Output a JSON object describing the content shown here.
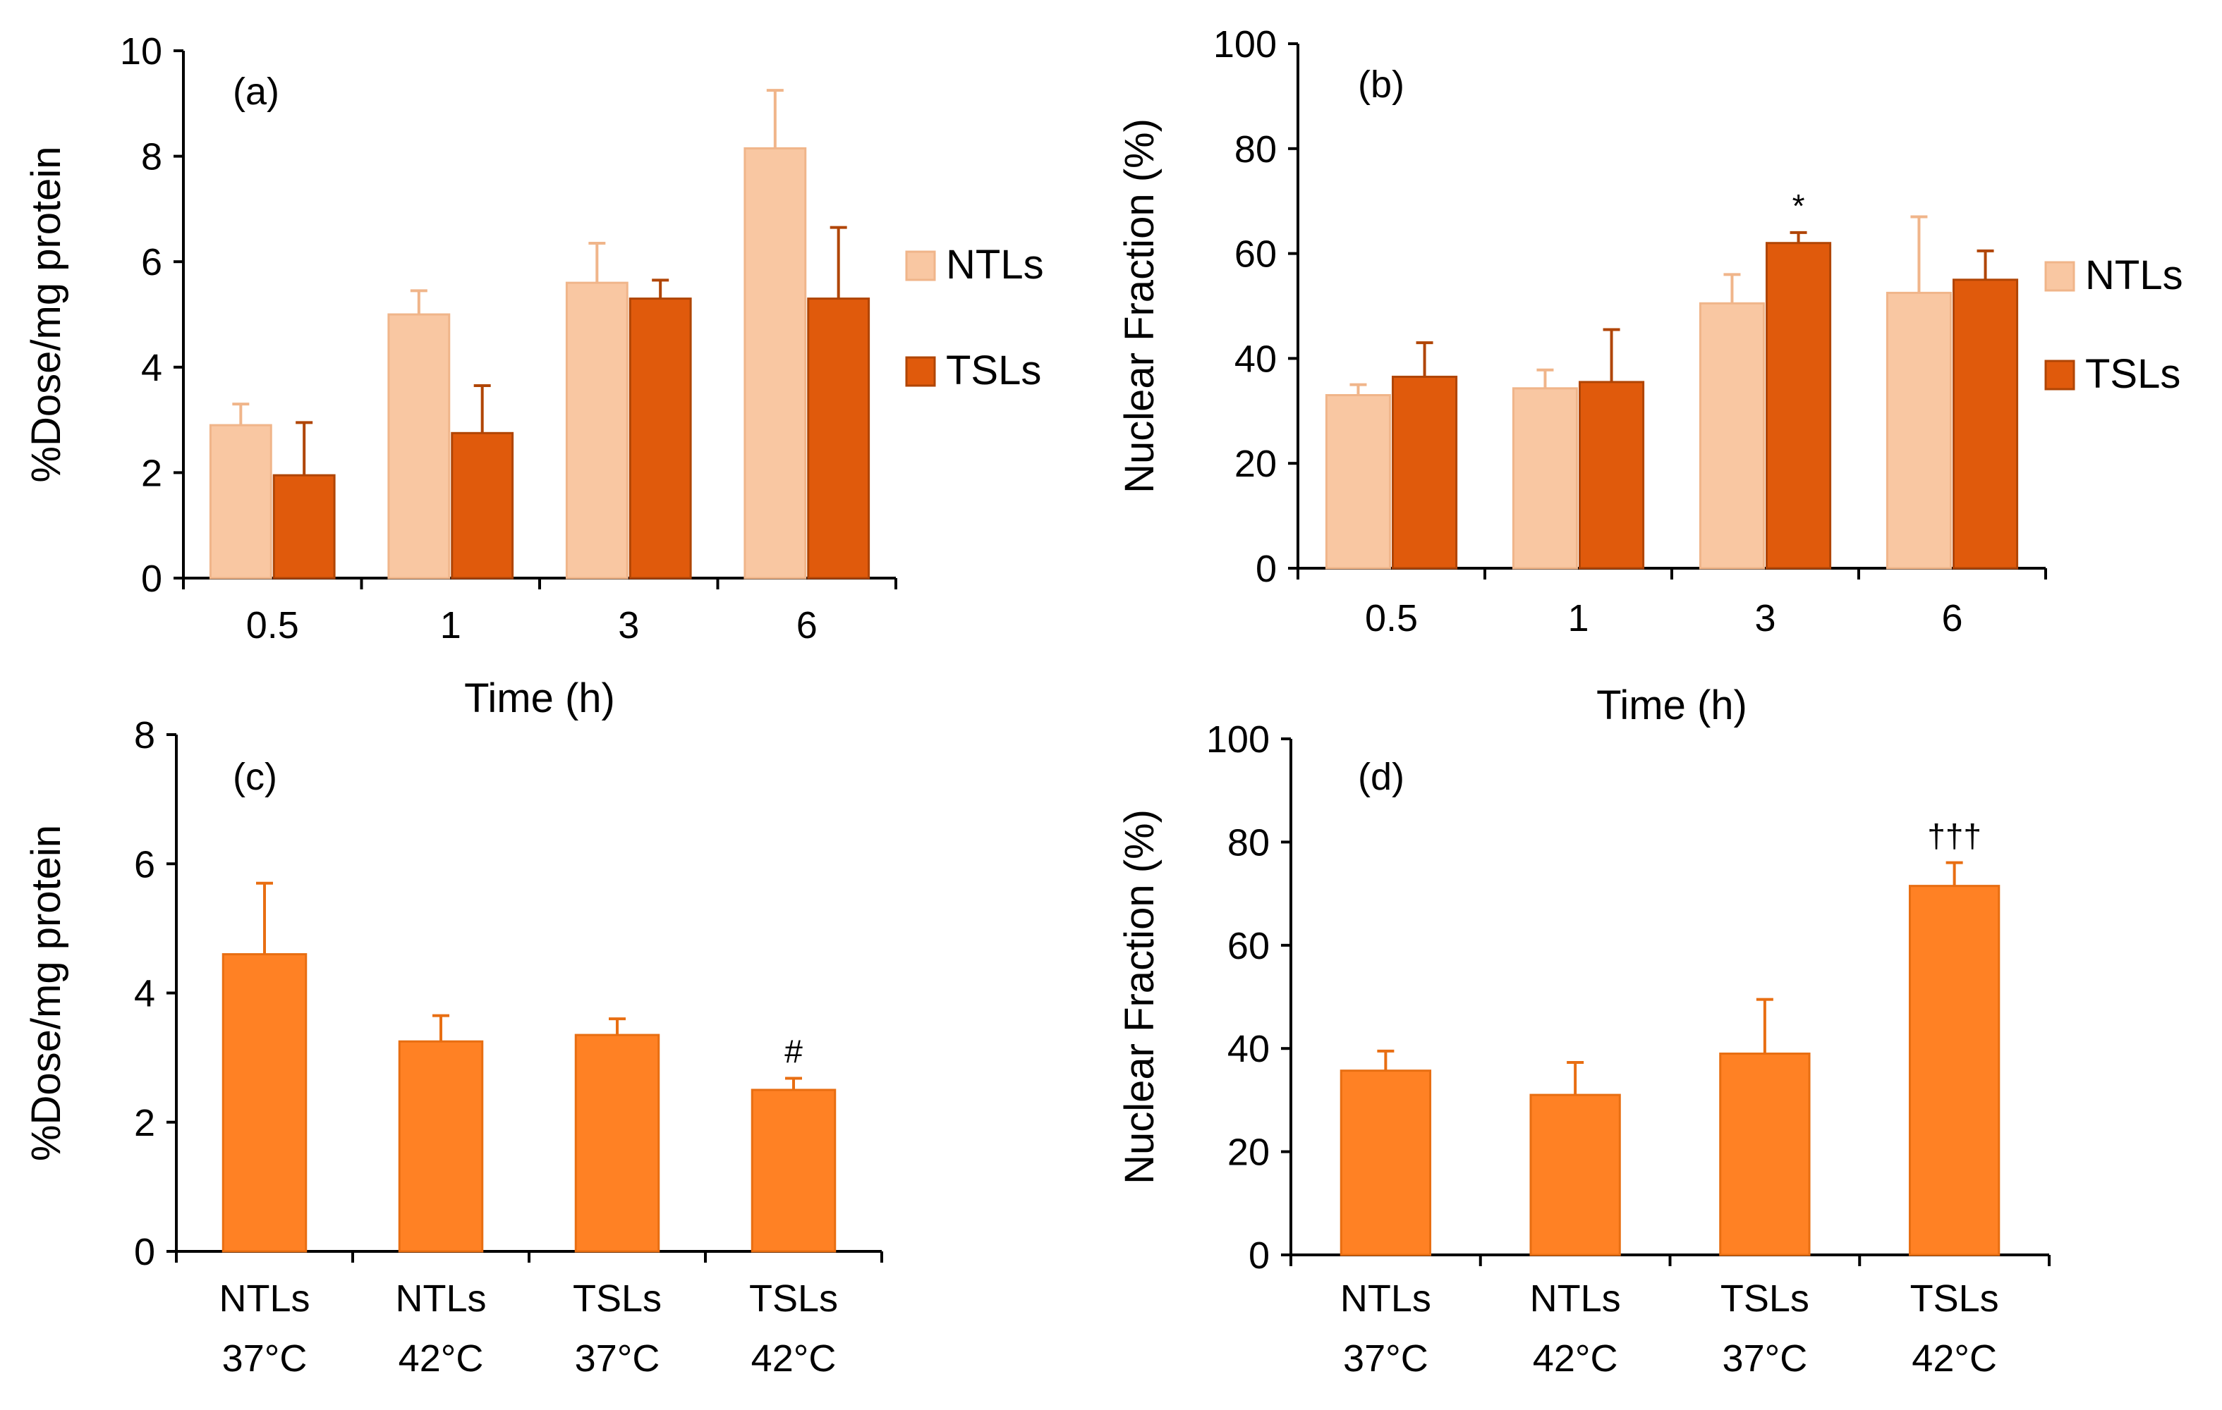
{
  "chart_data": [
    {
      "panel": "(a)",
      "type": "bar",
      "categories": [
        "0.5",
        "1",
        "3",
        "6"
      ],
      "series": [
        {
          "name": "NTLs",
          "values": [
            2.9,
            5.0,
            5.6,
            8.15
          ],
          "errors": [
            0.4,
            0.45,
            0.75,
            1.1
          ],
          "color": "#F9C7A2",
          "edge": "#F0B58A"
        },
        {
          "name": "TSLs",
          "values": [
            1.95,
            2.75,
            5.3,
            5.3
          ],
          "errors": [
            1.0,
            0.9,
            0.35,
            1.35
          ],
          "color": "#E05A0C",
          "edge": "#B04505"
        }
      ],
      "title": "",
      "xlabel": "Time (h)",
      "ylabel": "%Dose/mg protein",
      "ylim": [
        0,
        10
      ],
      "yticks": [
        "0",
        "2",
        "4",
        "6",
        "8",
        "10"
      ],
      "annotations": [],
      "legend": "right"
    },
    {
      "panel": "(b)",
      "type": "bar",
      "categories": [
        "0.5",
        "1",
        "3",
        "6"
      ],
      "series": [
        {
          "name": "NTLs",
          "values": [
            33,
            34.3,
            50.5,
            52.5
          ],
          "errors": [
            2,
            3.5,
            5.5,
            14.5
          ],
          "color": "#F9C7A2",
          "edge": "#F0B58A"
        },
        {
          "name": "TSLs",
          "values": [
            36.5,
            35.5,
            62,
            55
          ],
          "errors": [
            6.5,
            10,
            2,
            5.5
          ],
          "color": "#E05A0C",
          "edge": "#B04505"
        }
      ],
      "title": "",
      "xlabel": "Time (h)",
      "ylabel": "Nuclear Fraction (%)",
      "ylim": [
        0,
        100
      ],
      "yticks": [
        "0",
        "20",
        "40",
        "60",
        "80",
        "100"
      ],
      "annotations": [
        {
          "text": "*",
          "category_index": 2,
          "series_index": 1
        }
      ],
      "legend": "right"
    },
    {
      "panel": "(c)",
      "type": "bar",
      "categories": [
        "NTLs\n37°C",
        "NTLs\n42°C",
        "TSLs\n37°C",
        "TSLs\n42°C"
      ],
      "series": [
        {
          "name": "",
          "values": [
            4.6,
            3.25,
            3.35,
            2.5
          ],
          "errors": [
            1.1,
            0.4,
            0.25,
            0.18
          ],
          "color": "#FF8124",
          "edge": "#E86E12"
        }
      ],
      "title": "",
      "xlabel": "",
      "ylabel": "%Dose/mg protein",
      "ylim": [
        0,
        8
      ],
      "yticks": [
        "0",
        "2",
        "4",
        "6",
        "8"
      ],
      "annotations": [
        {
          "text": "#",
          "category_index": 3,
          "series_index": 0
        }
      ]
    },
    {
      "panel": "(d)",
      "type": "bar",
      "categories": [
        "NTLs\n37°C",
        "NTLs\n42°C",
        "TSLs\n37°C",
        "TSLs\n42°C"
      ],
      "series": [
        {
          "name": "",
          "values": [
            35.7,
            31,
            39,
            71.5
          ],
          "errors": [
            3.8,
            6.3,
            10.5,
            4.5
          ],
          "color": "#FF8124",
          "edge": "#E86E12"
        }
      ],
      "title": "",
      "xlabel": "",
      "ylabel": "Nuclear Fraction (%)",
      "ylim": [
        0,
        100
      ],
      "yticks": [
        "0",
        "20",
        "40",
        "60",
        "80",
        "100"
      ],
      "annotations": [
        {
          "text": "†††",
          "category_index": 3,
          "series_index": 0
        }
      ]
    }
  ]
}
